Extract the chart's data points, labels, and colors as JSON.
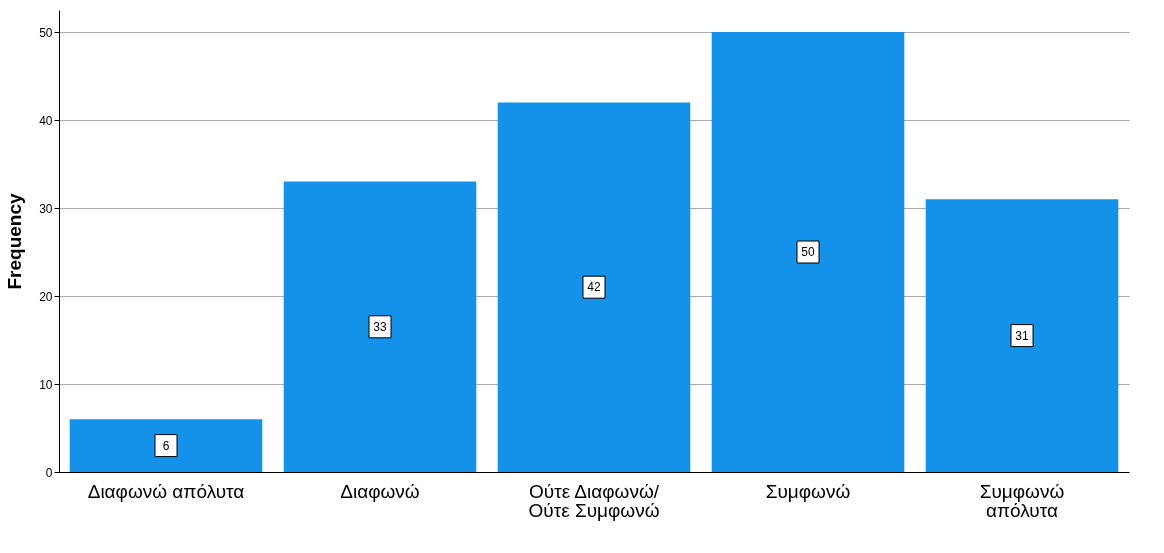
{
  "chart_data": {
    "type": "bar",
    "ylabel": "Frequency",
    "categories": [
      "Διαφωνώ απόλυτα",
      "Διαφωνώ",
      "Ούτε Διαφωνώ/\nΟύτε Συμφωνώ",
      "Συμφωνώ",
      "Συμφωνώ\nαπόλυτα"
    ],
    "values": [
      6,
      33,
      42,
      50,
      31
    ],
    "color": "#1491e8",
    "ylim": [
      0,
      52.5
    ],
    "yticks": [
      0,
      10,
      20,
      30,
      40,
      50
    ],
    "grid": "y",
    "data_labels": true
  }
}
